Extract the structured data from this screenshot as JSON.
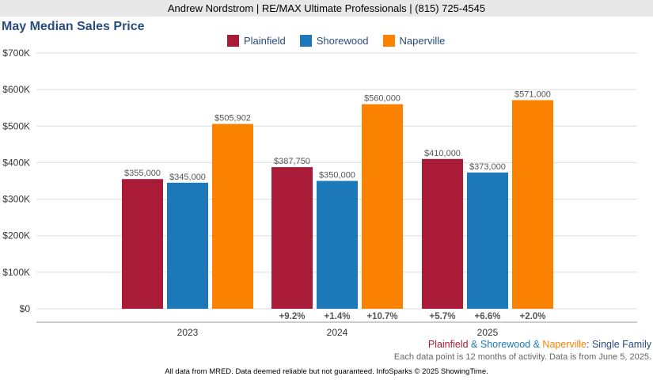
{
  "header": {
    "text": "Andrew Nordstrom | RE/MAX Ultimate Professionals | (815) 725-4545"
  },
  "chart_data": {
    "type": "bar",
    "title": "May Median Sales Price",
    "categories": [
      "2023",
      "2024",
      "2025"
    ],
    "series": [
      {
        "name": "Plainfield",
        "color": "#a91b36",
        "values": [
          355000,
          387750,
          410000
        ],
        "value_labels": [
          "$355,000",
          "$387,750",
          "$410,000"
        ],
        "change_labels": [
          "",
          "+9.2%",
          "+5.7%"
        ]
      },
      {
        "name": "Shorewood",
        "color": "#1c78b8",
        "values": [
          345000,
          350000,
          373000
        ],
        "value_labels": [
          "$345,000",
          "$350,000",
          "$373,000"
        ],
        "change_labels": [
          "",
          "+1.4%",
          "+6.6%"
        ]
      },
      {
        "name": "Naperville",
        "color": "#fb8200",
        "values": [
          505902,
          560000,
          571000
        ],
        "value_labels": [
          "$505,902",
          "$560,000",
          "$571,000"
        ],
        "change_labels": [
          "",
          "+10.7%",
          "+2.0%"
        ]
      }
    ],
    "y_ticks": [
      "$0",
      "$100K",
      "$200K",
      "$300K",
      "$400K",
      "$500K",
      "$600K",
      "$700K"
    ],
    "ylim": [
      0,
      700000
    ],
    "grid": true,
    "legend_position": "top-center"
  },
  "caption": {
    "series1": "Plainfield",
    "amp1": " & ",
    "series2": "Shorewood",
    "amp2": " & ",
    "series3": "Naperville",
    "suffix": ": Single Family",
    "note": "Each data point is 12 months of activity. Data is from June 5, 2025."
  },
  "footer": "All data from MRED. Data deemed reliable but not guaranteed. InfoSparks © 2025 ShowingTime.",
  "colors": {
    "title": "#2a4c7f",
    "grid": "#dddddd",
    "label": "#555555"
  }
}
